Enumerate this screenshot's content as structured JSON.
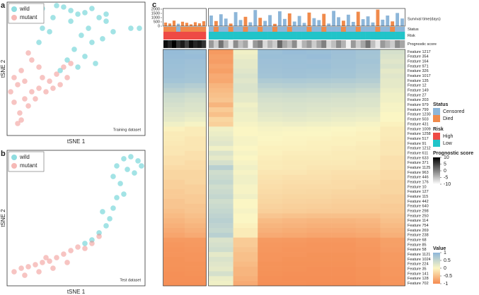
{
  "chart_data": [
    {
      "type": "scatter",
      "panel": "a",
      "xlabel": "tSNE 1",
      "ylabel": "tSNE 2",
      "annotation": "Training dataset",
      "xlim": [
        0,
        100
      ],
      "ylim": [
        0,
        100
      ],
      "legend": "upper left",
      "series": [
        {
          "name": "wild",
          "color": "#45c7cb",
          "x": [
            25.6,
            35.9,
            41,
            46.2,
            51.3,
            56.4,
            61.5,
            66.7,
            71.8,
            59,
            53.8,
            61.5,
            69.2,
            48.7,
            43.6,
            38.5,
            30.8,
            25.6,
            23.1,
            76.9,
            89.7,
            95.9,
            46.2,
            56.4,
            64.1,
            71.8,
            33.3,
            51.3
          ],
          "y": [
            95.2,
            97.4,
            96.3,
            93.7,
            91,
            92.1,
            95.2,
            88.4,
            85.7,
            80.4,
            75.1,
            69.8,
            72.5,
            64.6,
            56.6,
            48.7,
            77.8,
            80.4,
            69.8,
            77.8,
            80.4,
            80.4,
            85.7,
            59.3,
            54,
            91,
            88.4,
            51.3
          ]
        },
        {
          "name": "mutant",
          "color": "#f08a86",
          "x": [
            7.7,
            10.3,
            9.2,
            5.1,
            2.6,
            7.7,
            12.8,
            17.9,
            20.5,
            23.1,
            25.6,
            30.8,
            35.9,
            41,
            46.2,
            15.4,
            10.3,
            5.1,
            28.2,
            33.3,
            17.9,
            15.4,
            23.1,
            12.8,
            38.5,
            43.6
          ],
          "y": [
            9,
            11.6,
            16.9,
            24.9,
            32.8,
            38.1,
            40.7,
            32.8,
            27.5,
            35.4,
            43.4,
            40.7,
            46,
            51.3,
            54,
            22.2,
            48.7,
            43.4,
            32.8,
            35.4,
            56.6,
            61.9,
            51.3,
            27.5,
            38.1,
            43.4
          ]
        }
      ]
    },
    {
      "type": "scatter",
      "panel": "b",
      "xlabel": "tSNE 1",
      "ylabel": "tSNE 2",
      "annotation": "Test dataset",
      "xlim": [
        0,
        100
      ],
      "ylim": [
        0,
        100
      ],
      "legend": "upper left",
      "series": [
        {
          "name": "wild",
          "color": "#45c7cb",
          "x": [
            84.6,
            89.7,
            94.9,
            97.4,
            79.5,
            87.2,
            92.3,
            76.9,
            82.1,
            84.6,
            76.9,
            74.4,
            71.8,
            66.7,
            61.5,
            56.4,
            69.2,
            79.5
          ],
          "y": [
            93.8,
            95.3,
            92.2,
            88.5,
            88.5,
            85.9,
            83.3,
            80.7,
            75.5,
            67.7,
            57.3,
            49.5,
            44.3,
            39.1,
            33.9,
            31.3,
            54.7,
            65.1
          ]
        },
        {
          "name": "mutant",
          "color": "#f08a86",
          "x": [
            5.1,
            10.3,
            15.4,
            20.5,
            25.6,
            30.8,
            35.9,
            41,
            46.2,
            51.3,
            56.4,
            61.5,
            12.8,
            23.1,
            33.3,
            43.6,
            66.7,
            28.2
          ],
          "y": [
            10.4,
            13,
            14.1,
            15.6,
            17.2,
            18.2,
            20.8,
            23.4,
            26,
            28.6,
            27.6,
            31.3,
            7.8,
            10.4,
            13,
            17.2,
            36.5,
            20.8
          ]
        }
      ]
    },
    {
      "type": "heatmap",
      "panel": "c",
      "survival": {
        "label": "Survival time(days)",
        "ylim": [
          0,
          2000
        ],
        "yticks": [
          0,
          500,
          1000,
          1500,
          2000
        ],
        "values": [
          420,
          310,
          650,
          280,
          520,
          390,
          210,
          460,
          330,
          580,
          1250,
          600,
          1400,
          890,
          300,
          1650,
          720,
          1100,
          450,
          1900,
          980,
          620,
          1300,
          270,
          1750,
          850,
          1500,
          540,
          1200,
          380,
          1600,
          940,
          710,
          1450,
          300,
          1800,
          1050,
          640,
          1350,
          500,
          1700,
          820,
          1150,
          430,
          1950,
          760,
          1250,
          560,
          1550,
          900
        ]
      },
      "status": {
        "label": "Status",
        "categories": [
          "Censored",
          "Died"
        ],
        "colors": [
          "#8db6d9",
          "#f08a4b"
        ],
        "values": [
          "Died",
          "Died",
          "Died",
          "Censored",
          "Died",
          "Died",
          "Died",
          "Died",
          "Died",
          "Died",
          "Censored",
          "Died",
          "Censored",
          "Censored",
          "Died",
          "Censored",
          "Censored",
          "Died",
          "Censored",
          "Censored",
          "Died",
          "Censored",
          "Censored",
          "Died",
          "Censored",
          "Censored",
          "Died",
          "Censored",
          "Censored",
          "Censored",
          "Died",
          "Censored",
          "Censored",
          "Died",
          "Censored",
          "Censored",
          "Censored",
          "Died",
          "Censored",
          "Censored",
          "Died",
          "Censored",
          "Censored",
          "Censored",
          "Died",
          "Censored",
          "Censored",
          "Died",
          "Censored",
          "Censored"
        ]
      },
      "risk": {
        "label": "Risk",
        "categories": [
          "High",
          "Low"
        ],
        "colors": [
          "#ee4a45",
          "#21c4c9"
        ],
        "values": [
          "High",
          "High",
          "High",
          "High",
          "High",
          "High",
          "High",
          "High",
          "High",
          "High",
          "Low",
          "Low",
          "Low",
          "Low",
          "Low",
          "Low",
          "Low",
          "Low",
          "Low",
          "Low",
          "Low",
          "Low",
          "Low",
          "Low",
          "Low",
          "Low",
          "Low",
          "Low",
          "Low",
          "Low",
          "Low",
          "Low",
          "Low",
          "Low",
          "Low",
          "Low",
          "Low",
          "Low",
          "Low",
          "Low",
          "Low",
          "Low",
          "Low",
          "Low",
          "Low",
          "Low",
          "Low",
          "Low",
          "Low",
          "Low"
        ]
      },
      "score": {
        "label": "Prognostic score",
        "lim": [
          -10,
          10
        ],
        "ticks": [
          10,
          5,
          0,
          -5,
          -10
        ],
        "colors": [
          "#ffffff",
          "#000000"
        ],
        "values": [
          9,
          7,
          10,
          6,
          8,
          5,
          9,
          7,
          8,
          6,
          -2,
          -6,
          1,
          -4,
          -8,
          -1,
          -5,
          -3,
          -9,
          -2,
          0,
          -7,
          -4,
          -6,
          2,
          -3,
          -5,
          -1,
          -8,
          -4,
          -2,
          -6,
          -3,
          0,
          -7,
          -5,
          -1,
          -4,
          -9,
          -2,
          -6,
          -3,
          1,
          -5,
          -8,
          -2,
          -4,
          -6,
          -1,
          -3
        ]
      },
      "value_legend": {
        "title": "Value",
        "lim": [
          -1,
          1
        ],
        "ticks": [
          1,
          0.5,
          0,
          -0.5,
          -1
        ],
        "colors": [
          "#f58a50",
          "#fbf6c4",
          "#8db7da"
        ]
      },
      "samples_per_block": 5,
      "features": [
        "Feature 1217",
        "Feature 354",
        "Feature 164",
        "Feature 971",
        "Feature 326",
        "Feature 1017",
        "Feature 135",
        "Feature 12",
        "Feature 149",
        "Feature 27",
        "Feature 203",
        "Feature 979",
        "Feature 799",
        "Feature 1230",
        "Feature 503",
        "Feature 431",
        "Feature 1009",
        "Feature 1258",
        "Feature 517",
        "Feature 91",
        "Feature 1212",
        "Feature 611",
        "Feature 633",
        "Feature 371",
        "Feature 1125",
        "Feature 963",
        "Feature 446",
        "Feature 176",
        "Feature 10",
        "Feature 127",
        "Feature 115",
        "Feature 442",
        "Feature 640",
        "Feature 298",
        "Feature 250",
        "Feature 114",
        "Feature 754",
        "Feature 269",
        "Feature 238",
        "Feature 68",
        "Feature 85",
        "Feature 58",
        "Feature 1121",
        "Feature 1024",
        "Feature 224",
        "Feature 35",
        "Feature 141",
        "Feature 128",
        "Feature 702"
      ],
      "values": [
        [
          0.92,
          0.88,
          -0.85,
          0.1,
          0.86,
          0.9,
          0.88,
          0.85,
          0.8,
          0.35
        ],
        [
          0.9,
          0.9,
          -0.8,
          0.15,
          0.88,
          0.87,
          0.9,
          0.84,
          0.78,
          0.3
        ],
        [
          0.88,
          0.85,
          -0.82,
          0.2,
          0.85,
          0.86,
          0.85,
          0.83,
          0.8,
          0.25
        ],
        [
          0.86,
          0.84,
          -0.75,
          0.2,
          0.84,
          0.85,
          0.86,
          0.82,
          0.76,
          0.3
        ],
        [
          0.85,
          0.83,
          -0.8,
          0.25,
          0.82,
          0.84,
          0.83,
          0.8,
          0.75,
          0.2
        ],
        [
          0.84,
          0.8,
          -0.7,
          0.3,
          0.8,
          0.82,
          0.8,
          0.78,
          0.72,
          0.25
        ],
        [
          0.8,
          0.78,
          -0.72,
          0.25,
          0.7,
          0.72,
          0.7,
          0.68,
          0.65,
          0.2
        ],
        [
          0.7,
          0.65,
          -0.6,
          0.3,
          0.6,
          0.62,
          0.6,
          0.58,
          0.55,
          0.2
        ],
        [
          0.6,
          0.55,
          -0.55,
          0.3,
          0.5,
          0.52,
          0.5,
          0.5,
          0.45,
          0.15
        ],
        [
          0.45,
          0.4,
          -0.5,
          0.2,
          0.4,
          0.42,
          0.4,
          0.38,
          0.35,
          0.1
        ],
        [
          0.4,
          0.35,
          -0.45,
          0.2,
          0.35,
          0.36,
          0.35,
          0.33,
          0.3,
          0.1
        ],
        [
          0.35,
          0.3,
          -0.6,
          0.1,
          0.3,
          0.32,
          0.3,
          0.3,
          0.28,
          0.05
        ],
        [
          0.3,
          0.28,
          -0.4,
          0.15,
          0.28,
          0.3,
          0.27,
          0.25,
          0.22,
          0.05
        ],
        [
          0.25,
          0.2,
          -0.5,
          0.1,
          0.22,
          0.25,
          0.22,
          0.2,
          0.18,
          0
        ],
        [
          0.2,
          0.15,
          -0.3,
          0.1,
          0.18,
          0.2,
          0.18,
          0.15,
          0.12,
          0
        ],
        [
          0.1,
          0.05,
          -0.35,
          0.05,
          0.1,
          0.12,
          0.1,
          0.08,
          0.05,
          -0.05
        ],
        [
          -0.05,
          -0.1,
          0.1,
          0,
          0.05,
          0.03,
          0.02,
          0,
          -0.02,
          -0.1
        ],
        [
          -0.1,
          -0.1,
          0.15,
          0,
          0.02,
          0,
          0,
          -0.02,
          -0.05,
          -0.1
        ],
        [
          -0.1,
          -0.15,
          0.2,
          0.05,
          0,
          -0.02,
          -0.03,
          -0.05,
          -0.05,
          -0.12
        ],
        [
          -0.12,
          -0.15,
          0.25,
          0.05,
          -0.02,
          -0.03,
          -0.05,
          -0.05,
          -0.08,
          -0.15
        ],
        [
          -0.15,
          -0.15,
          0.1,
          0,
          -0.05,
          -0.05,
          -0.06,
          -0.08,
          -0.1,
          -0.15
        ],
        [
          -0.15,
          -0.2,
          0.3,
          0.05,
          -0.05,
          -0.08,
          -0.08,
          -0.1,
          -0.1,
          -0.15
        ],
        [
          -0.2,
          -0.2,
          0.2,
          0,
          -0.08,
          -0.1,
          -0.1,
          -0.1,
          -0.12,
          -0.2
        ],
        [
          -0.2,
          -0.25,
          0.35,
          0.05,
          -0.1,
          -0.12,
          -0.12,
          -0.12,
          -0.15,
          -0.2
        ],
        [
          -0.25,
          -0.25,
          0.6,
          0.1,
          -0.1,
          -0.12,
          -0.15,
          -0.15,
          -0.15,
          -0.2
        ],
        [
          -0.3,
          -0.3,
          0.4,
          0.05,
          -0.15,
          -0.15,
          -0.18,
          -0.2,
          -0.2,
          -0.25
        ],
        [
          -0.3,
          -0.3,
          0.45,
          0.1,
          -0.18,
          -0.2,
          -0.2,
          -0.22,
          -0.22,
          -0.25
        ],
        [
          -0.35,
          -0.3,
          0.5,
          0.1,
          -0.2,
          -0.22,
          -0.22,
          -0.25,
          -0.25,
          -0.3
        ],
        [
          -0.35,
          -0.35,
          0.4,
          0.05,
          -0.22,
          -0.25,
          -0.25,
          -0.25,
          -0.28,
          -0.3
        ],
        [
          -0.4,
          -0.35,
          0.45,
          0.05,
          -0.25,
          -0.27,
          -0.28,
          -0.3,
          -0.3,
          -0.3
        ],
        [
          -0.4,
          -0.4,
          0.5,
          0.1,
          -0.28,
          -0.3,
          -0.3,
          -0.32,
          -0.32,
          -0.35
        ],
        [
          -0.45,
          -0.4,
          0.4,
          0,
          -0.3,
          -0.32,
          -0.33,
          -0.35,
          -0.35,
          -0.35
        ],
        [
          -0.45,
          -0.45,
          0.45,
          0,
          -0.33,
          -0.35,
          -0.36,
          -0.38,
          -0.38,
          -0.4
        ],
        [
          -0.5,
          -0.45,
          0.5,
          0.05,
          -0.36,
          -0.38,
          -0.4,
          -0.4,
          -0.4,
          -0.4
        ],
        [
          -0.55,
          -0.5,
          0.55,
          0,
          -0.45,
          -0.48,
          -0.5,
          -0.5,
          -0.5,
          -0.45
        ],
        [
          -0.6,
          -0.55,
          0.6,
          0,
          -0.55,
          -0.58,
          -0.6,
          -0.6,
          -0.58,
          -0.5
        ],
        [
          -0.65,
          -0.6,
          0.55,
          -0.05,
          -0.6,
          -0.62,
          -0.65,
          -0.65,
          -0.62,
          -0.55
        ],
        [
          -0.7,
          -0.65,
          0.5,
          -0.1,
          -0.65,
          -0.68,
          -0.7,
          -0.7,
          -0.68,
          -0.6
        ],
        [
          -0.75,
          -0.7,
          0.6,
          -0.1,
          -0.7,
          -0.72,
          -0.75,
          -0.75,
          -0.72,
          -0.65
        ],
        [
          -0.85,
          -0.85,
          0.3,
          -0.4,
          -0.85,
          -0.86,
          -0.88,
          -0.88,
          -0.85,
          -0.8
        ],
        [
          -0.88,
          -0.86,
          0.35,
          -0.4,
          -0.87,
          -0.88,
          -0.9,
          -0.9,
          -0.86,
          -0.8
        ],
        [
          -0.9,
          -0.88,
          0.4,
          -0.45,
          -0.88,
          -0.9,
          -0.9,
          -0.9,
          -0.88,
          -0.82
        ],
        [
          -0.9,
          -0.9,
          0.2,
          -0.5,
          -0.9,
          -0.9,
          -0.92,
          -0.92,
          -0.9,
          -0.85
        ],
        [
          -0.92,
          -0.9,
          0.3,
          -0.5,
          -0.9,
          -0.92,
          -0.92,
          -0.92,
          -0.9,
          -0.85
        ],
        [
          -0.92,
          -0.92,
          0.25,
          -0.55,
          -0.92,
          -0.93,
          -0.93,
          -0.93,
          -0.9,
          -0.86
        ],
        [
          -0.93,
          -0.92,
          0.2,
          -0.6,
          -0.92,
          -0.93,
          -0.94,
          -0.94,
          -0.92,
          -0.88
        ],
        [
          -0.94,
          -0.93,
          0.35,
          -0.6,
          -0.93,
          -0.94,
          -0.94,
          -0.94,
          -0.92,
          -0.88
        ],
        [
          -0.94,
          -0.94,
          0.15,
          -0.65,
          -0.94,
          -0.95,
          -0.95,
          -0.95,
          -0.93,
          -0.9
        ],
        [
          -0.95,
          -0.95,
          0.1,
          -0.7,
          -0.95,
          -0.95,
          -0.96,
          -0.96,
          -0.94,
          -0.9
        ]
      ]
    }
  ]
}
